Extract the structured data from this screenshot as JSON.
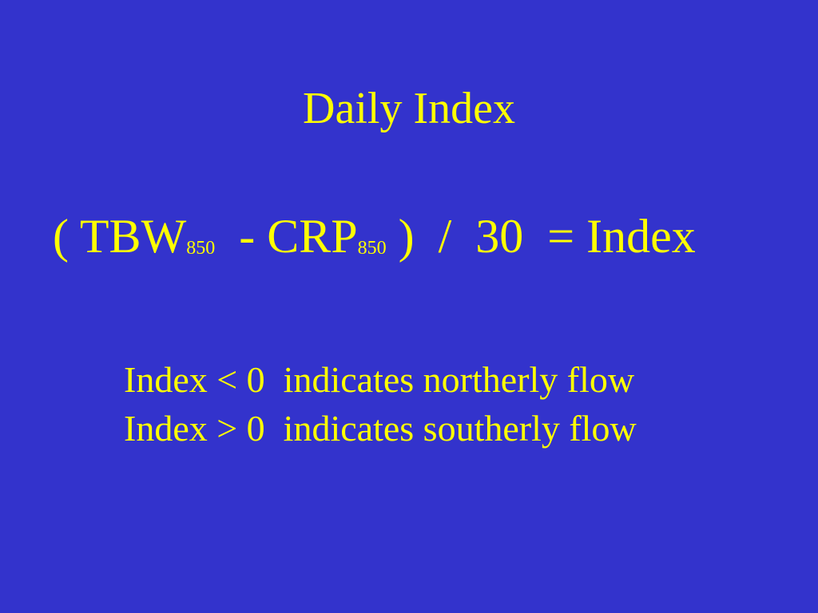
{
  "colors": {
    "background": "#3333cc",
    "text": "#ffff00"
  },
  "slide": {
    "title": "Daily Index",
    "formula": {
      "open_paren": "( ",
      "term1": "TBW",
      "term1_sub": "850",
      "minus": "  - ",
      "term2": "CRP",
      "term2_sub": "850",
      "close_paren": " )  ",
      "divide": "/  ",
      "divisor": "30",
      "equals": "  = ",
      "result": "Index"
    },
    "notes": [
      "Index < 0  indicates northerly flow",
      "Index > 0  indicates southerly flow"
    ]
  }
}
